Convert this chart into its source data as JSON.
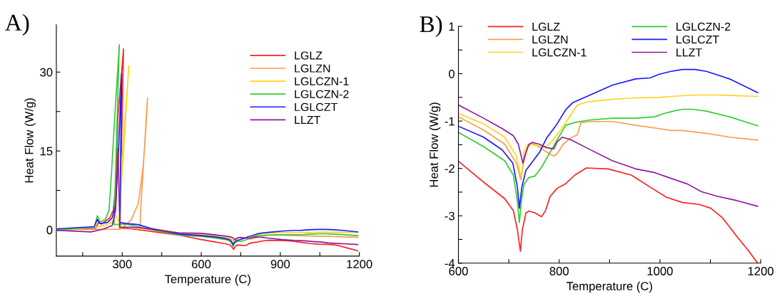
{
  "chart_data": [
    {
      "type": "line",
      "title": "A)",
      "xlabel": "Temperature (C)",
      "ylabel": "Heat Flow (W/g)",
      "xlim": [
        50,
        1200
      ],
      "ylim": [
        -5,
        39
      ],
      "xticks": [
        {
          "value": 150,
          "label": null
        },
        300,
        {
          "value": 450,
          "label": null
        },
        600,
        {
          "value": 750,
          "label": null
        },
        900,
        {
          "value": 1050,
          "label": null
        },
        1200
      ],
      "yticks": [
        0,
        {
          "value": 7.5,
          "label": null
        },
        15,
        {
          "value": 22.5,
          "label": null
        },
        30
      ],
      "legend": "top right",
      "grid": false,
      "series": [
        {
          "name": "LGLZ",
          "color": "#ff2020",
          "x": [
            55,
            199,
            210,
            222,
            253,
            266,
            275,
            284,
            305,
            291,
            334,
            425,
            515,
            600,
            650,
            692,
            709,
            717,
            723,
            727,
            734,
            740,
            752,
            765,
            773,
            782,
            796,
            813,
            831,
            854,
            897,
            943,
            980,
            1013,
            1045,
            1078,
            1101,
            1124,
            1153,
            1176,
            1194
          ],
          "values": [
            -0.1,
            0.3,
            1.4,
            1.1,
            2.3,
            3.7,
            8.2,
            21.7,
            34.4,
            0.3,
            0.2,
            -0.4,
            -1.0,
            -1.85,
            -2.29,
            -2.64,
            -2.89,
            -3.29,
            -3.75,
            -3.29,
            -2.94,
            -2.9,
            -2.94,
            -3.02,
            -2.89,
            -2.59,
            -2.42,
            -2.32,
            -2.14,
            -1.99,
            -2.01,
            -2.14,
            -2.39,
            -2.61,
            -2.72,
            -2.76,
            -2.84,
            -3.04,
            -3.44,
            -3.74,
            -4.0
          ]
        },
        {
          "name": "LGLZN",
          "color": "#ff9a4d",
          "x": [
            55,
            199,
            290,
            303,
            334,
            361,
            379,
            390,
            396,
            370,
            368,
            407,
            461,
            515,
            600,
            650,
            692,
            715,
            724,
            729,
            738,
            747,
            761,
            776,
            789,
            796,
            808,
            822,
            836,
            843,
            859,
            906,
            952,
            999,
            1022,
            1045,
            1092,
            1138,
            1194
          ],
          "values": [
            0,
            0.1,
            0.1,
            0.5,
            1.9,
            5.0,
            11.8,
            19.4,
            25.1,
            3.7,
            0.3,
            0.2,
            -0.1,
            -0.6,
            -0.91,
            -1.19,
            -1.49,
            -1.89,
            -2.24,
            -1.89,
            -1.54,
            -1.46,
            -1.56,
            -1.66,
            -1.74,
            -1.69,
            -1.49,
            -1.36,
            -1.29,
            -1.04,
            -1.01,
            -1.01,
            -1.09,
            -1.16,
            -1.2,
            -1.2,
            -1.26,
            -1.34,
            -1.4
          ]
        },
        {
          "name": "LGLCZN-1",
          "color": "#ffd11a",
          "x": [
            55,
            199,
            244,
            262,
            275,
            289,
            298,
            312,
            325,
            287,
            334,
            425,
            515,
            600,
            650,
            692,
            715,
            725,
            730,
            738,
            752,
            771,
            785,
            803,
            822,
            836,
            859,
            906,
            952,
            999,
            1022,
            1069,
            1115,
            1194
          ],
          "values": [
            -0.1,
            0.5,
            1.0,
            1.4,
            2.8,
            1.4,
            12.7,
            21.7,
            31.2,
            0.5,
            0.5,
            -0.1,
            -0.8,
            -0.84,
            -1.06,
            -1.34,
            -1.74,
            -2.21,
            -1.66,
            -1.49,
            -1.51,
            -1.56,
            -1.44,
            -1.19,
            -0.89,
            -0.66,
            -0.59,
            -0.54,
            -0.51,
            -0.5,
            -0.48,
            -0.45,
            -0.45,
            -0.48
          ]
        },
        {
          "name": "LGLCZN-2",
          "color": "#33cc33",
          "x": [
            55,
            194,
            206,
            215,
            235,
            250,
            259,
            272,
            289,
            269,
            316,
            370,
            425,
            515,
            600,
            650,
            692,
            709,
            717,
            721,
            725,
            730,
            740,
            752,
            766,
            780,
            799,
            813,
            831,
            859,
            906,
            952,
            990,
            1008,
            1027,
            1045,
            1064,
            1092,
            1138,
            1194
          ],
          "values": [
            0,
            0.5,
            2.7,
            1.5,
            1.9,
            3.7,
            10.4,
            21.7,
            35.2,
            1.0,
            1.1,
            0.5,
            -0.1,
            -1.0,
            -1.24,
            -1.54,
            -1.84,
            -2.14,
            -2.69,
            -3.14,
            -2.69,
            -2.34,
            -2.19,
            -2.16,
            -1.96,
            -1.69,
            -1.34,
            -1.09,
            -1.03,
            -0.98,
            -0.94,
            -0.94,
            -0.91,
            -0.84,
            -0.79,
            -0.75,
            -0.75,
            -0.79,
            -0.91,
            -1.1
          ]
        },
        {
          "name": "LGLCZT",
          "color": "#1a1aff",
          "x": [
            55,
            194,
            206,
            215,
            244,
            262,
            275,
            284,
            298,
            291,
            316,
            361,
            407,
            515,
            600,
            650,
            687,
            708,
            717,
            721,
            726,
            734,
            747,
            761,
            775,
            794,
            813,
            827,
            859,
            906,
            952,
            980,
            999,
            1022,
            1045,
            1069,
            1092,
            1138,
            1194
          ],
          "values": [
            0.2,
            0.6,
            2.0,
            1.2,
            1.4,
            2.3,
            4.6,
            12.7,
            29.7,
            1.4,
            1.2,
            1.0,
            0.3,
            -0.8,
            -1.11,
            -1.34,
            -1.61,
            -1.89,
            -2.39,
            -2.84,
            -2.39,
            -2.04,
            -1.86,
            -1.66,
            -1.36,
            -1.09,
            -0.76,
            -0.61,
            -0.46,
            -0.24,
            -0.11,
            -0.09,
            -0.01,
            0.05,
            0.09,
            0.09,
            0.05,
            -0.11,
            -0.4
          ]
        },
        {
          "name": "LLZT",
          "color": "#8b1a9e",
          "x": [
            55,
            181,
            226,
            262,
            275,
            284,
            291,
            334,
            370,
            425,
            515,
            600,
            650,
            687,
            709,
            719,
            728,
            733,
            740,
            747,
            761,
            775,
            789,
            796,
            806,
            822,
            859,
            906,
            952,
            990,
            1022,
            1055,
            1082,
            1115,
            1153,
            1194
          ],
          "values": [
            -0.1,
            -0.4,
            0.1,
            0.8,
            3.7,
            15.4,
            0.5,
            0.5,
            0.4,
            0,
            -0.6,
            -0.66,
            -0.94,
            -1.16,
            -1.31,
            -1.49,
            -1.89,
            -1.69,
            -1.49,
            -1.45,
            -1.49,
            -1.56,
            -1.59,
            -1.44,
            -1.34,
            -1.39,
            -1.59,
            -1.84,
            -2.01,
            -2.09,
            -2.21,
            -2.33,
            -2.49,
            -2.59,
            -2.68,
            -2.8
          ]
        }
      ]
    },
    {
      "type": "line",
      "title": "B)",
      "xlabel": "Temperature (C)",
      "ylabel": "Heat Flow (W/g)",
      "xlim": [
        600,
        1200
      ],
      "ylim": [
        -4,
        1
      ],
      "xticks": [
        600,
        {
          "value": 700,
          "label": null
        },
        800,
        {
          "value": 900,
          "label": null
        },
        1000,
        {
          "value": 1100,
          "label": null
        },
        1200
      ],
      "yticks": [
        -4,
        {
          "value": -3.5,
          "label": null
        },
        -3,
        {
          "value": -2.5,
          "label": null
        },
        -2,
        {
          "value": -1.5,
          "label": null
        },
        -1,
        {
          "value": -0.5,
          "label": null
        },
        0,
        {
          "value": 0.5,
          "label": null
        },
        1
      ],
      "legend": "top",
      "grid": false,
      "series": [
        {
          "name": "LGLZ",
          "color": "#ff2020",
          "x": [
            600,
            650,
            692,
            709,
            717,
            723,
            727,
            734,
            740,
            752,
            765,
            773,
            782,
            796,
            813,
            831,
            854,
            897,
            943,
            980,
            1013,
            1045,
            1078,
            1101,
            1124,
            1153,
            1176,
            1194
          ],
          "values": [
            -1.85,
            -2.29,
            -2.64,
            -2.89,
            -3.29,
            -3.75,
            -3.29,
            -2.94,
            -2.9,
            -2.94,
            -3.02,
            -2.89,
            -2.59,
            -2.42,
            -2.32,
            -2.14,
            -1.99,
            -2.01,
            -2.14,
            -2.39,
            -2.61,
            -2.72,
            -2.76,
            -2.84,
            -3.04,
            -3.44,
            -3.74,
            -4.0
          ]
        },
        {
          "name": "LGLZN",
          "color": "#ff9a4d",
          "x": [
            600,
            650,
            692,
            715,
            724,
            729,
            738,
            747,
            761,
            776,
            789,
            796,
            808,
            822,
            836,
            843,
            859,
            906,
            952,
            999,
            1022,
            1045,
            1092,
            1138,
            1194
          ],
          "values": [
            -0.91,
            -1.19,
            -1.49,
            -1.89,
            -2.24,
            -1.89,
            -1.54,
            -1.46,
            -1.56,
            -1.66,
            -1.74,
            -1.69,
            -1.49,
            -1.36,
            -1.29,
            -1.04,
            -1.01,
            -1.01,
            -1.09,
            -1.16,
            -1.2,
            -1.2,
            -1.26,
            -1.34,
            -1.4
          ]
        },
        {
          "name": "LGLCZN-1",
          "color": "#ffd11a",
          "x": [
            600,
            650,
            692,
            715,
            725,
            730,
            738,
            752,
            771,
            785,
            803,
            822,
            836,
            859,
            906,
            952,
            999,
            1022,
            1069,
            1115,
            1194
          ],
          "values": [
            -0.84,
            -1.06,
            -1.34,
            -1.74,
            -2.21,
            -1.66,
            -1.49,
            -1.51,
            -1.56,
            -1.44,
            -1.19,
            -0.89,
            -0.66,
            -0.59,
            -0.54,
            -0.51,
            -0.5,
            -0.48,
            -0.45,
            -0.45,
            -0.48
          ]
        },
        {
          "name": "LGLCZN-2",
          "color": "#33cc33",
          "x": [
            600,
            650,
            692,
            709,
            717,
            721,
            725,
            730,
            740,
            752,
            766,
            780,
            799,
            813,
            831,
            859,
            906,
            952,
            990,
            1008,
            1027,
            1045,
            1064,
            1092,
            1138,
            1194
          ],
          "values": [
            -1.24,
            -1.54,
            -1.84,
            -2.14,
            -2.69,
            -3.14,
            -2.69,
            -2.34,
            -2.19,
            -2.16,
            -1.96,
            -1.69,
            -1.34,
            -1.09,
            -1.03,
            -0.98,
            -0.94,
            -0.94,
            -0.91,
            -0.84,
            -0.79,
            -0.75,
            -0.75,
            -0.79,
            -0.91,
            -1.1
          ]
        },
        {
          "name": "LGLCZT",
          "color": "#1a1aff",
          "x": [
            600,
            650,
            687,
            708,
            717,
            721,
            726,
            734,
            747,
            761,
            775,
            794,
            813,
            827,
            859,
            906,
            952,
            980,
            999,
            1022,
            1045,
            1069,
            1092,
            1138,
            1194
          ],
          "values": [
            -1.11,
            -1.34,
            -1.61,
            -1.89,
            -2.39,
            -2.84,
            -2.39,
            -2.04,
            -1.86,
            -1.66,
            -1.36,
            -1.09,
            -0.76,
            -0.61,
            -0.46,
            -0.24,
            -0.11,
            -0.09,
            -0.01,
            0.05,
            0.09,
            0.09,
            0.05,
            -0.11,
            -0.4
          ]
        },
        {
          "name": "LLZT",
          "color": "#8b1a9e",
          "x": [
            600,
            650,
            687,
            709,
            719,
            728,
            733,
            740,
            747,
            761,
            775,
            789,
            796,
            806,
            822,
            859,
            906,
            952,
            990,
            1022,
            1055,
            1082,
            1115,
            1153,
            1194
          ],
          "values": [
            -0.66,
            -0.94,
            -1.16,
            -1.31,
            -1.49,
            -1.89,
            -1.69,
            -1.49,
            -1.45,
            -1.49,
            -1.56,
            -1.59,
            -1.44,
            -1.34,
            -1.39,
            -1.59,
            -1.84,
            -2.01,
            -2.09,
            -2.21,
            -2.33,
            -2.49,
            -2.59,
            -2.68,
            -2.8
          ]
        }
      ]
    }
  ]
}
